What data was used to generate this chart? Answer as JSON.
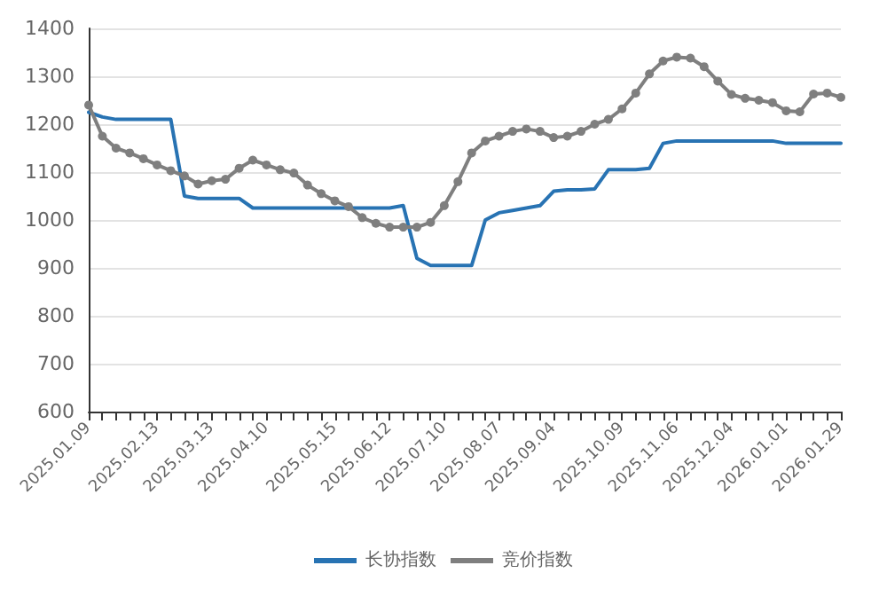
{
  "chart_data": {
    "type": "line",
    "categories": [
      "2025.01.09",
      null,
      null,
      null,
      null,
      "2025.02.13",
      null,
      null,
      null,
      "2025.03.13",
      null,
      null,
      null,
      "2025.04.10",
      null,
      null,
      null,
      null,
      "2025.05.15",
      null,
      null,
      null,
      "2025.06.12",
      null,
      null,
      null,
      "2025.07.10",
      null,
      null,
      null,
      "2025.08.07",
      null,
      null,
      null,
      "2025.09.04",
      null,
      null,
      null,
      null,
      "2025.10.09",
      null,
      null,
      null,
      "2025.11.06",
      null,
      null,
      null,
      "2025.12.04",
      null,
      null,
      null,
      "2026.01.01",
      null,
      null,
      null,
      "2026.01.29"
    ],
    "series": [
      {
        "name": "长协指数",
        "color": "#2873b3",
        "marker": "none",
        "values": [
          1225,
          1215,
          1210,
          1210,
          1210,
          1210,
          1210,
          1050,
          1045,
          1045,
          1045,
          1045,
          1025,
          1025,
          1025,
          1025,
          1025,
          1025,
          1025,
          1025,
          1025,
          1025,
          1025,
          1030,
          920,
          905,
          905,
          905,
          905,
          1000,
          1015,
          1020,
          1025,
          1030,
          1060,
          1063,
          1063,
          1065,
          1105,
          1105,
          1105,
          1108,
          1160,
          1165,
          1165,
          1165,
          1165,
          1165,
          1165,
          1165,
          1165,
          1160,
          1160,
          1160,
          1160,
          1160
        ]
      },
      {
        "name": "竞价指数",
        "color": "#7f7f7f",
        "marker": "circle",
        "values": [
          1240,
          1175,
          1150,
          1140,
          1128,
          1115,
          1103,
          1092,
          1075,
          1082,
          1085,
          1108,
          1125,
          1115,
          1105,
          1098,
          1073,
          1055,
          1040,
          1028,
          1005,
          993,
          985,
          985,
          985,
          995,
          1030,
          1080,
          1140,
          1165,
          1175,
          1185,
          1190,
          1185,
          1172,
          1175,
          1185,
          1200,
          1210,
          1232,
          1265,
          1305,
          1332,
          1340,
          1338,
          1320,
          1290,
          1262,
          1254,
          1250,
          1245,
          1228,
          1226,
          1263,
          1265,
          1256
        ]
      }
    ],
    "ylim": [
      600,
      1400
    ],
    "yticks": [
      600,
      700,
      800,
      900,
      1000,
      1100,
      1200,
      1300,
      1400
    ],
    "grid": "y",
    "legend": "bottom"
  }
}
